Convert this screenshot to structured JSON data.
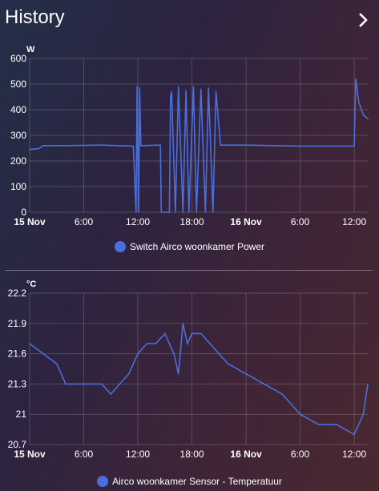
{
  "header": {
    "title": "History",
    "nav_icon": "chevron-right-icon"
  },
  "colors": {
    "series": "#4a6fdc",
    "grid": "rgba(255,255,255,0.18)"
  },
  "charts": [
    {
      "unit": "W",
      "legend": "Switch Airco woonkamer Power",
      "x_ticks": [
        "15 Nov",
        "6:00",
        "12:00",
        "18:00",
        "16 Nov",
        "6:00",
        "12:00"
      ],
      "y_ticks": [
        "600",
        "500",
        "400",
        "300",
        "200",
        "100",
        "0"
      ]
    },
    {
      "unit": "°C",
      "legend": "Airco woonkamer Sensor - Temperatuur",
      "x_ticks": [
        "15 Nov",
        "6:00",
        "12:00",
        "18:00",
        "16 Nov",
        "6:00",
        "12:00"
      ],
      "y_ticks": [
        "22.2",
        "21.9",
        "21.6",
        "21.3",
        "21",
        "20.7"
      ]
    }
  ],
  "chart_data": [
    {
      "type": "line",
      "ylabel": "W",
      "ylim": [
        0,
        600
      ],
      "xlim": [
        "2023-11-15 00:00",
        "2023-11-16 13:30"
      ],
      "x_ticks": [
        "15 Nov",
        "6:00",
        "12:00",
        "18:00",
        "16 Nov",
        "6:00",
        "12:00"
      ],
      "series": [
        {
          "name": "Switch Airco woonkamer Power",
          "points": [
            [
              "2023-11-15 00:00",
              245
            ],
            [
              "2023-11-15 01:00",
              248
            ],
            [
              "2023-11-15 01:30",
              260
            ],
            [
              "2023-11-15 04:00",
              260
            ],
            [
              "2023-11-15 08:00",
              262
            ],
            [
              "2023-11-15 11:30",
              258
            ],
            [
              "2023-11-15 11:48",
              0
            ],
            [
              "2023-11-15 11:55",
              490
            ],
            [
              "2023-11-15 12:05",
              0
            ],
            [
              "2023-11-15 12:12",
              485
            ],
            [
              "2023-11-15 12:20",
              260
            ],
            [
              "2023-11-15 14:30",
              262
            ],
            [
              "2023-11-15 14:36",
              0
            ],
            [
              "2023-11-15 15:30",
              0
            ],
            [
              "2023-11-15 15:38",
              455
            ],
            [
              "2023-11-15 15:45",
              470
            ],
            [
              "2023-11-15 16:10",
              0
            ],
            [
              "2023-11-15 16:30",
              490
            ],
            [
              "2023-11-15 17:00",
              0
            ],
            [
              "2023-11-15 17:20",
              475
            ],
            [
              "2023-11-15 17:40",
              0
            ],
            [
              "2023-11-15 18:10",
              490
            ],
            [
              "2023-11-15 18:30",
              0
            ],
            [
              "2023-11-15 19:00",
              480
            ],
            [
              "2023-11-15 19:30",
              0
            ],
            [
              "2023-11-15 19:50",
              485
            ],
            [
              "2023-11-15 20:20",
              0
            ],
            [
              "2023-11-15 20:40",
              470
            ],
            [
              "2023-11-15 21:10",
              262
            ],
            [
              "2023-11-16 00:00",
              262
            ],
            [
              "2023-11-16 06:00",
              258
            ],
            [
              "2023-11-16 11:50",
              258
            ],
            [
              "2023-11-16 12:00",
              260
            ],
            [
              "2023-11-16 12:10",
              520
            ],
            [
              "2023-11-16 12:30",
              430
            ],
            [
              "2023-11-16 13:00",
              380
            ],
            [
              "2023-11-16 13:30",
              365
            ]
          ]
        }
      ]
    },
    {
      "type": "line",
      "ylabel": "°C",
      "ylim": [
        20.7,
        22.2
      ],
      "xlim": [
        "2023-11-15 00:00",
        "2023-11-16 13:30"
      ],
      "x_ticks": [
        "15 Nov",
        "6:00",
        "12:00",
        "18:00",
        "16 Nov",
        "6:00",
        "12:00"
      ],
      "series": [
        {
          "name": "Airco woonkamer Sensor - Temperatuur",
          "points": [
            [
              "2023-11-15 00:00",
              21.7
            ],
            [
              "2023-11-15 01:30",
              21.6
            ],
            [
              "2023-11-15 03:00",
              21.5
            ],
            [
              "2023-11-15 04:00",
              21.3
            ],
            [
              "2023-11-15 06:00",
              21.3
            ],
            [
              "2023-11-15 08:00",
              21.3
            ],
            [
              "2023-11-15 09:00",
              21.2
            ],
            [
              "2023-11-15 10:00",
              21.3
            ],
            [
              "2023-11-15 11:00",
              21.4
            ],
            [
              "2023-11-15 12:00",
              21.6
            ],
            [
              "2023-11-15 13:00",
              21.7
            ],
            [
              "2023-11-15 14:00",
              21.7
            ],
            [
              "2023-11-15 15:00",
              21.8
            ],
            [
              "2023-11-15 16:00",
              21.6
            ],
            [
              "2023-11-15 16:30",
              21.4
            ],
            [
              "2023-11-15 17:00",
              21.9
            ],
            [
              "2023-11-15 17:30",
              21.7
            ],
            [
              "2023-11-15 18:00",
              21.8
            ],
            [
              "2023-11-15 19:00",
              21.8
            ],
            [
              "2023-11-15 20:00",
              21.7
            ],
            [
              "2023-11-15 21:00",
              21.6
            ],
            [
              "2023-11-15 22:00",
              21.5
            ],
            [
              "2023-11-16 00:00",
              21.4
            ],
            [
              "2023-11-16 02:00",
              21.3
            ],
            [
              "2023-11-16 04:00",
              21.2
            ],
            [
              "2023-11-16 06:00",
              21.0
            ],
            [
              "2023-11-16 08:00",
              20.9
            ],
            [
              "2023-11-16 10:00",
              20.9
            ],
            [
              "2023-11-16 12:00",
              20.8
            ],
            [
              "2023-11-16 13:00",
              21.0
            ],
            [
              "2023-11-16 13:30",
              21.3
            ]
          ]
        }
      ]
    }
  ]
}
